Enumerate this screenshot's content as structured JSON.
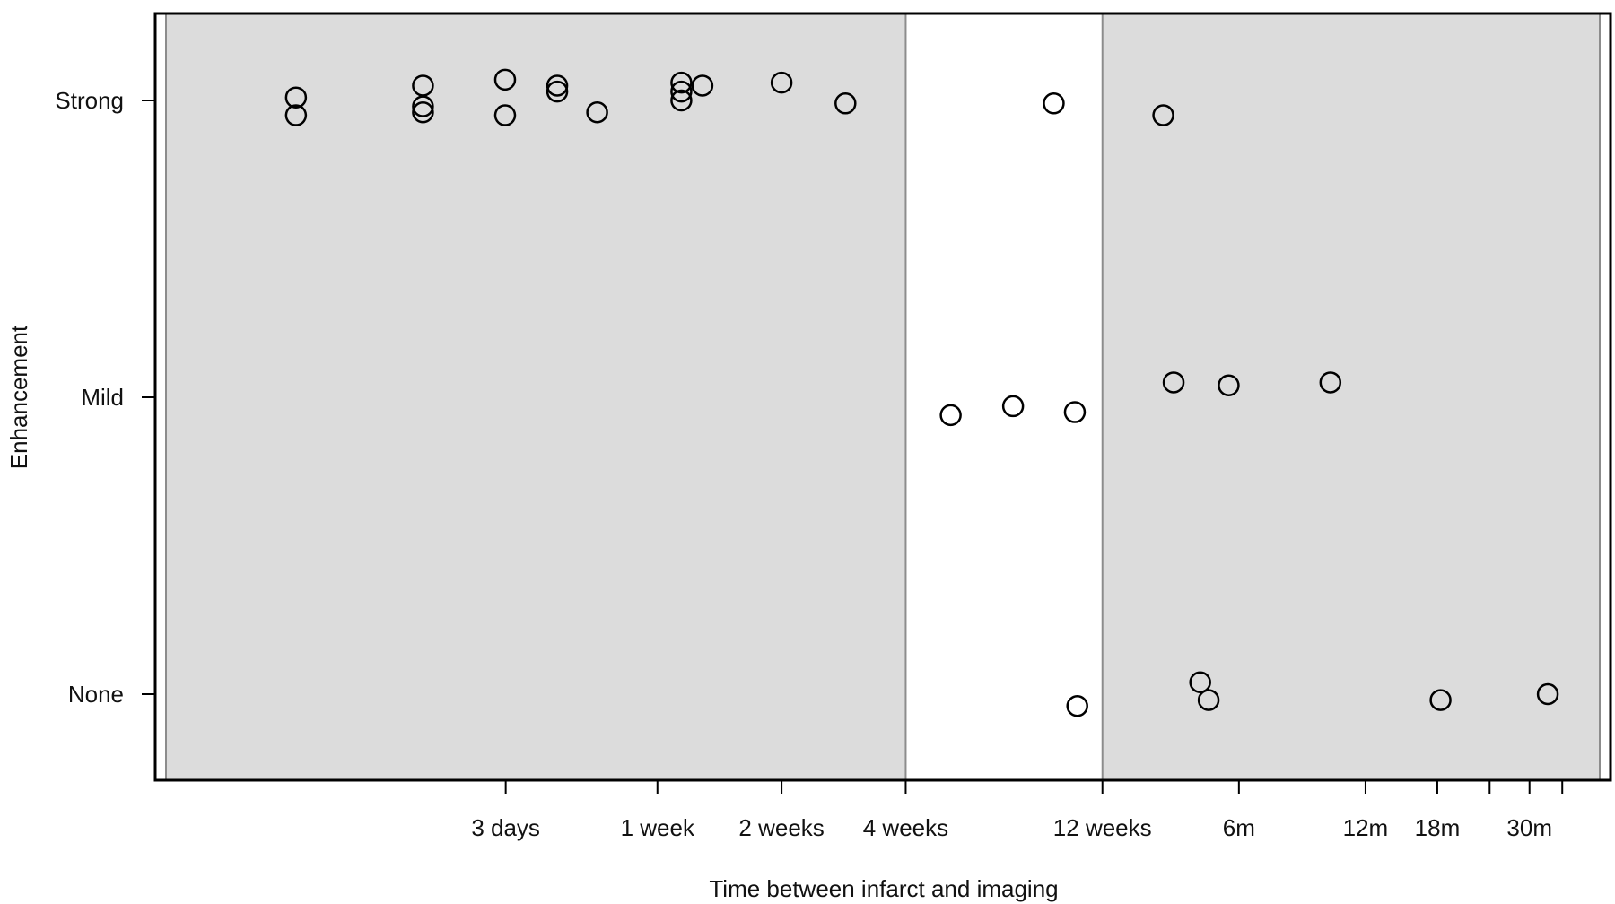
{
  "chart_data": {
    "type": "scatter",
    "title": "",
    "xlabel": "Time between infarct and imaging",
    "ylabel": "Enhancement",
    "x_scale": "log",
    "x_unit": "days",
    "xlim": [
      0.45,
      1350
    ],
    "x_ticks": [
      {
        "value": 3,
        "label": "3 days"
      },
      {
        "value": 7,
        "label": "1 week"
      },
      {
        "value": 14,
        "label": "2 weeks"
      },
      {
        "value": 28,
        "label": "4 weeks"
      },
      {
        "value": 84,
        "label": "12 weeks"
      },
      {
        "value": 180,
        "label": "6m"
      },
      {
        "value": 365,
        "label": "12m"
      },
      {
        "value": 545,
        "label": "18m"
      },
      {
        "value": 730,
        "label": ""
      },
      {
        "value": 912,
        "label": "30m"
      },
      {
        "value": 1095,
        "label": ""
      }
    ],
    "y_categories": [
      "None",
      "Mild",
      "Strong"
    ],
    "shaded_regions": [
      {
        "x_from": 0.45,
        "x_to": 28
      },
      {
        "x_from": 84,
        "x_to": 1350
      }
    ],
    "shade_color": "#dcdcdc",
    "point_color": "#000000",
    "points": [
      {
        "x": 0.93,
        "y": "Strong",
        "jitter": 0.01
      },
      {
        "x": 0.93,
        "y": "Strong",
        "jitter": -0.05
      },
      {
        "x": 1.89,
        "y": "Strong",
        "jitter": 0.05
      },
      {
        "x": 1.89,
        "y": "Strong",
        "jitter": -0.02
      },
      {
        "x": 1.89,
        "y": "Strong",
        "jitter": -0.04
      },
      {
        "x": 2.99,
        "y": "Strong",
        "jitter": 0.07
      },
      {
        "x": 2.99,
        "y": "Strong",
        "jitter": -0.05
      },
      {
        "x": 4.0,
        "y": "Strong",
        "jitter": 0.05
      },
      {
        "x": 4.0,
        "y": "Strong",
        "jitter": 0.03
      },
      {
        "x": 5.0,
        "y": "Strong",
        "jitter": -0.04
      },
      {
        "x": 8.0,
        "y": "Strong",
        "jitter": 0.06
      },
      {
        "x": 8.0,
        "y": "Strong",
        "jitter": 0.03
      },
      {
        "x": 8.0,
        "y": "Strong",
        "jitter": 0.0
      },
      {
        "x": 9.0,
        "y": "Strong",
        "jitter": 0.05
      },
      {
        "x": 14.0,
        "y": "Strong",
        "jitter": 0.06
      },
      {
        "x": 20.0,
        "y": "Strong",
        "jitter": -0.01
      },
      {
        "x": 64.0,
        "y": "Strong",
        "jitter": -0.01
      },
      {
        "x": 118.0,
        "y": "Strong",
        "jitter": -0.05
      },
      {
        "x": 36.0,
        "y": "Mild",
        "jitter": -0.06
      },
      {
        "x": 51.0,
        "y": "Mild",
        "jitter": -0.03
      },
      {
        "x": 72.0,
        "y": "Mild",
        "jitter": -0.05
      },
      {
        "x": 125.0,
        "y": "Mild",
        "jitter": 0.05
      },
      {
        "x": 170.0,
        "y": "Mild",
        "jitter": 0.04
      },
      {
        "x": 300.0,
        "y": "Mild",
        "jitter": 0.05
      },
      {
        "x": 73.0,
        "y": "None",
        "jitter": -0.04
      },
      {
        "x": 145.0,
        "y": "None",
        "jitter": 0.04
      },
      {
        "x": 152.0,
        "y": "None",
        "jitter": -0.02
      },
      {
        "x": 555.0,
        "y": "None",
        "jitter": -0.02
      },
      {
        "x": 1010.0,
        "y": "None",
        "jitter": 0.0
      }
    ]
  }
}
